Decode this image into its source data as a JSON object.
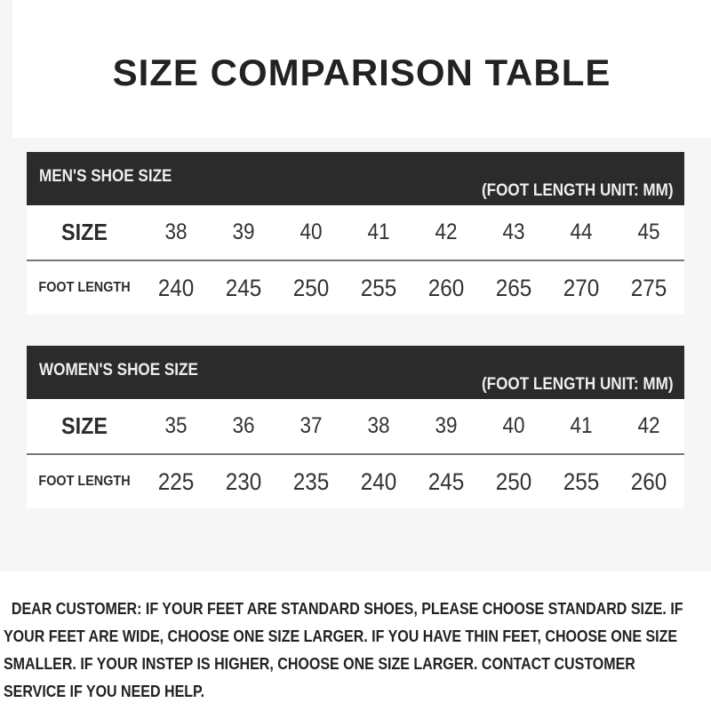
{
  "title": "SIZE COMPARISON TABLE",
  "men": {
    "header": "MEN'S SHOE SIZE",
    "unit": "(FOOT LENGTH UNIT: MM)",
    "size_label": "SIZE",
    "length_label": "FOOT LENGTH",
    "sizes": [
      "38",
      "39",
      "40",
      "41",
      "42",
      "43",
      "44",
      "45"
    ],
    "lengths": [
      "240",
      "245",
      "250",
      "255",
      "260",
      "265",
      "270",
      "275"
    ]
  },
  "women": {
    "header": "WOMEN'S SHOE SIZE",
    "unit": "(FOOT LENGTH UNIT: MM)",
    "size_label": "SIZE",
    "length_label": "FOOT LENGTH",
    "sizes": [
      "35",
      "36",
      "37",
      "38",
      "39",
      "40",
      "41",
      "42"
    ],
    "lengths": [
      "225",
      "230",
      "235",
      "240",
      "245",
      "250",
      "255",
      "260"
    ]
  },
  "note": "  DEAR CUSTOMER: IF YOUR FEET ARE STANDARD SHOES, PLEASE CHOOSE STANDARD SIZE. IF YOUR FEET ARE WIDE, CHOOSE ONE SIZE LARGER. IF YOU HAVE THIN FEET, CHOOSE ONE SIZE SMALLER. IF YOUR INSTEP IS HIGHER, CHOOSE ONE SIZE LARGER. CONTACT CUSTOMER SERVICE IF YOU NEED HELP.",
  "colors": {
    "header_band": "#2b2b2b",
    "text": "#2b2b2b"
  }
}
